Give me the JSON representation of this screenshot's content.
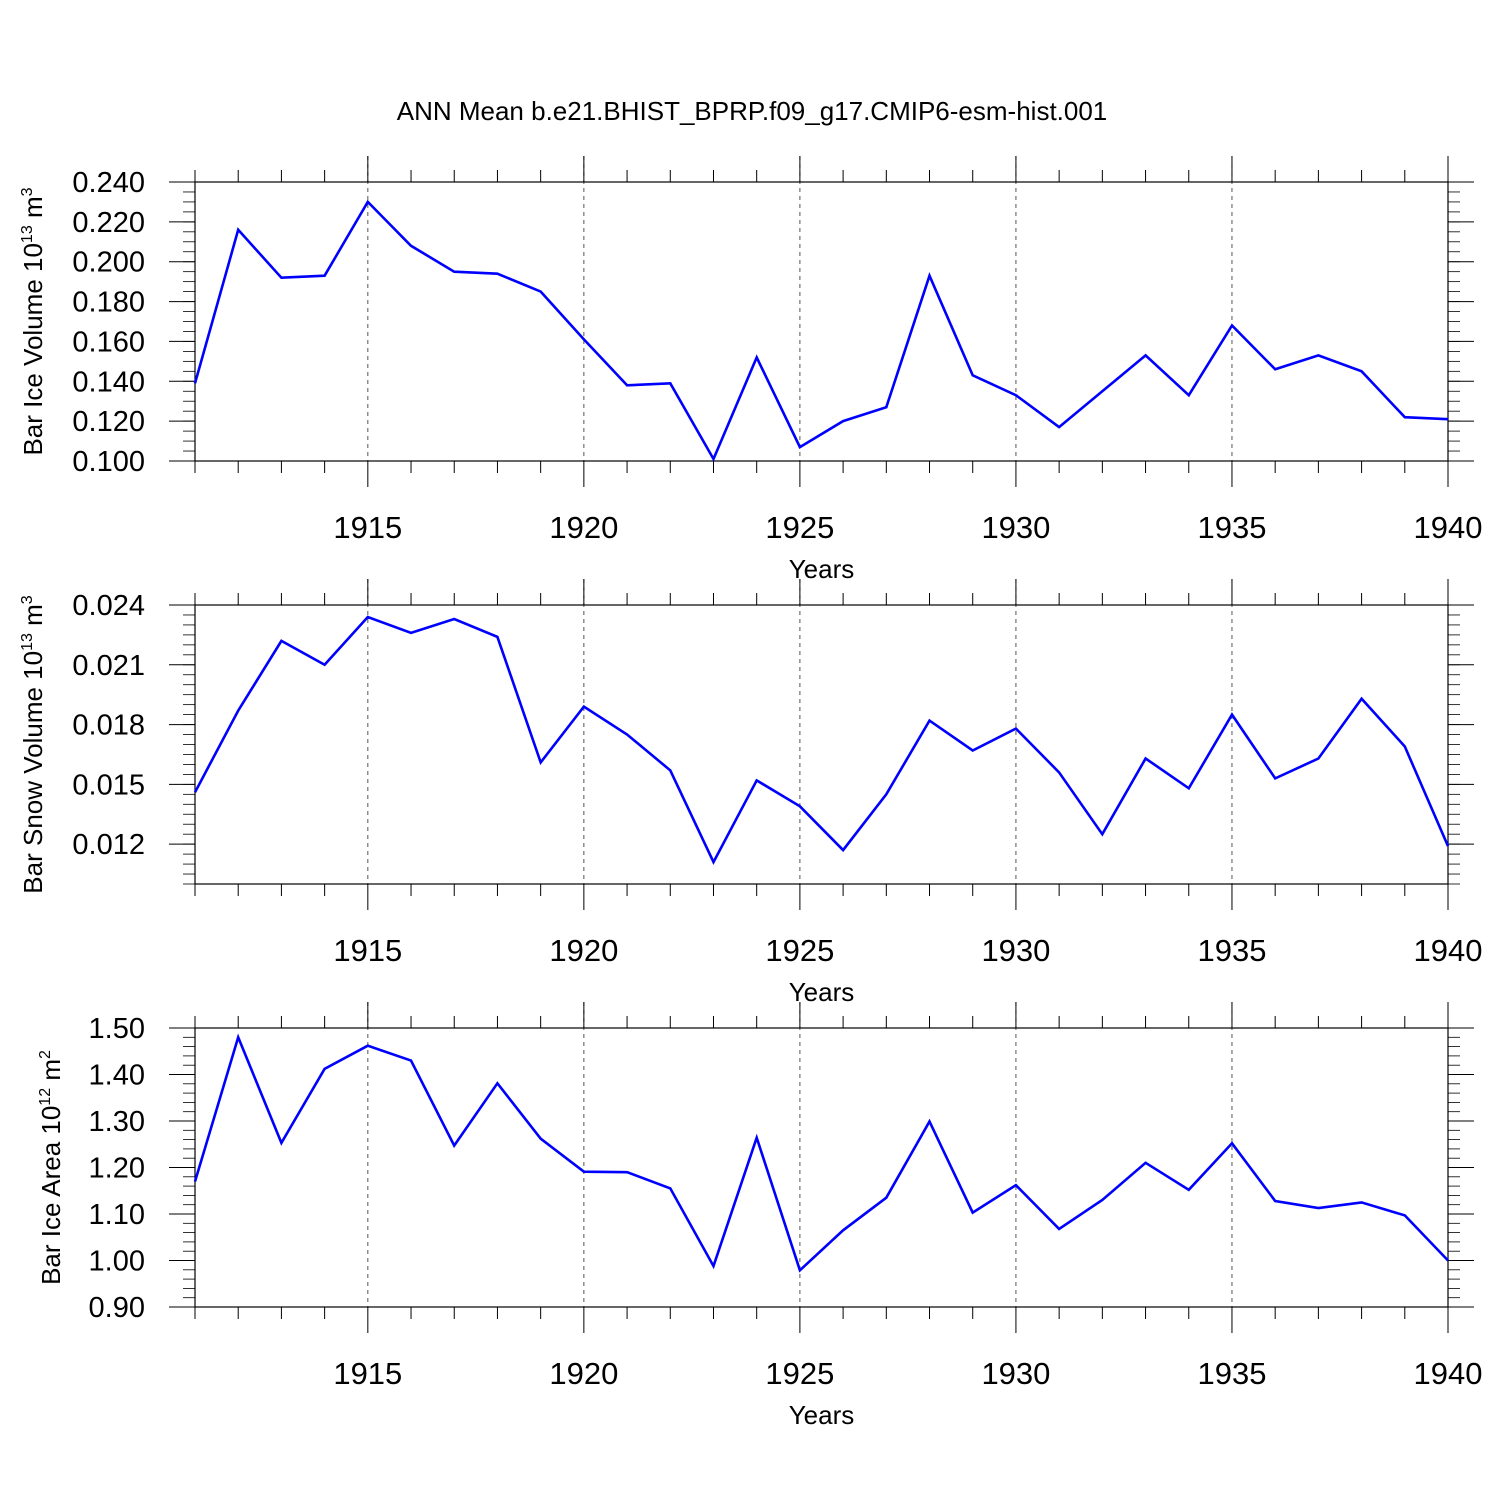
{
  "title": "ANN Mean b.e21.BHIST_BPRP.f09_g17.CMIP6-esm-hist.001",
  "line_color": "#0000ff",
  "chart_data": [
    {
      "type": "line",
      "id": "ice-volume",
      "ylabel": {
        "text": "Bar Ice Volume 10",
        "sup": "13",
        "unit": " m",
        "unit_sup": "3"
      },
      "xlabel": "Years",
      "xlim": [
        1911,
        1940
      ],
      "ylim": [
        0.1,
        0.24
      ],
      "yticks": [
        0.1,
        0.12,
        0.14,
        0.16,
        0.18,
        0.2,
        0.22,
        0.24
      ],
      "ytick_labels": [
        "0.100",
        "0.120",
        "0.140",
        "0.160",
        "0.180",
        "0.200",
        "0.220",
        "0.240"
      ],
      "yminor_step": 0.005,
      "xticks": [
        1915,
        1920,
        1925,
        1930,
        1935,
        1940
      ],
      "xtick_labels": [
        "1915",
        "1920",
        "1925",
        "1930",
        "1935",
        "1940"
      ],
      "grid_x": [
        1915,
        1920,
        1925,
        1930,
        1935
      ],
      "x": [
        1911,
        1912,
        1913,
        1914,
        1915,
        1916,
        1917,
        1918,
        1919,
        1920,
        1921,
        1922,
        1923,
        1924,
        1925,
        1926,
        1927,
        1928,
        1929,
        1930,
        1931,
        1932,
        1933,
        1934,
        1935,
        1936,
        1937,
        1938,
        1939,
        1940
      ],
      "values": [
        0.139,
        0.216,
        0.192,
        0.193,
        0.23,
        0.208,
        0.195,
        0.194,
        0.185,
        0.161,
        0.138,
        0.139,
        0.101,
        0.152,
        0.107,
        0.12,
        0.127,
        0.193,
        0.143,
        0.133,
        0.117,
        0.135,
        0.153,
        0.133,
        0.168,
        0.146,
        0.153,
        0.145,
        0.122,
        0.121
      ]
    },
    {
      "type": "line",
      "id": "snow-volume",
      "ylabel": {
        "text": "Bar Snow Volume 10",
        "sup": "13",
        "unit": " m",
        "unit_sup": "3"
      },
      "xlabel": "Years",
      "xlim": [
        1911,
        1940
      ],
      "ylim": [
        0.01,
        0.024
      ],
      "yticks": [
        0.012,
        0.015,
        0.018,
        0.021,
        0.024
      ],
      "ytick_labels": [
        "0.012",
        "0.015",
        "0.018",
        "0.021",
        "0.024"
      ],
      "yminor_step": 0.0005,
      "xticks": [
        1915,
        1920,
        1925,
        1930,
        1935,
        1940
      ],
      "xtick_labels": [
        "1915",
        "1920",
        "1925",
        "1930",
        "1935",
        "1940"
      ],
      "grid_x": [
        1915,
        1920,
        1925,
        1930,
        1935
      ],
      "x": [
        1911,
        1912,
        1913,
        1914,
        1915,
        1916,
        1917,
        1918,
        1919,
        1920,
        1921,
        1922,
        1923,
        1924,
        1925,
        1926,
        1927,
        1928,
        1929,
        1930,
        1931,
        1932,
        1933,
        1934,
        1935,
        1936,
        1937,
        1938,
        1939,
        1940
      ],
      "values": [
        0.0146,
        0.0187,
        0.0222,
        0.021,
        0.0234,
        0.0226,
        0.0233,
        0.0224,
        0.0161,
        0.0189,
        0.0175,
        0.0157,
        0.0111,
        0.0152,
        0.0139,
        0.0117,
        0.0145,
        0.0182,
        0.0167,
        0.0178,
        0.0156,
        0.0125,
        0.0163,
        0.0148,
        0.0185,
        0.0153,
        0.0163,
        0.0193,
        0.0169,
        0.0119
      ]
    },
    {
      "type": "line",
      "id": "ice-area",
      "ylabel": {
        "text": "Bar Ice Area 10",
        "sup": "12",
        "unit": " m",
        "unit_sup": "2"
      },
      "xlabel": "Years",
      "xlim": [
        1911,
        1940
      ],
      "ylim": [
        0.9,
        1.5
      ],
      "yticks": [
        0.9,
        1.0,
        1.1,
        1.2,
        1.3,
        1.4,
        1.5
      ],
      "ytick_labels": [
        "0.90",
        "1.00",
        "1.10",
        "1.20",
        "1.30",
        "1.40",
        "1.50"
      ],
      "yminor_step": 0.02,
      "xticks": [
        1915,
        1920,
        1925,
        1930,
        1935,
        1940
      ],
      "xtick_labels": [
        "1915",
        "1920",
        "1925",
        "1930",
        "1935",
        "1940"
      ],
      "grid_x": [
        1915,
        1920,
        1925,
        1930,
        1935
      ],
      "x": [
        1911,
        1912,
        1913,
        1914,
        1915,
        1916,
        1917,
        1918,
        1919,
        1920,
        1921,
        1922,
        1923,
        1924,
        1925,
        1926,
        1927,
        1928,
        1929,
        1930,
        1931,
        1932,
        1933,
        1934,
        1935,
        1936,
        1937,
        1938,
        1939,
        1940
      ],
      "values": [
        1.17,
        1.48,
        1.253,
        1.412,
        1.462,
        1.43,
        1.247,
        1.381,
        1.262,
        1.191,
        1.19,
        1.155,
        0.988,
        1.264,
        0.979,
        1.065,
        1.135,
        1.299,
        1.103,
        1.162,
        1.068,
        1.13,
        1.21,
        1.152,
        1.252,
        1.128,
        1.113,
        1.125,
        1.097,
        1.0
      ]
    }
  ]
}
